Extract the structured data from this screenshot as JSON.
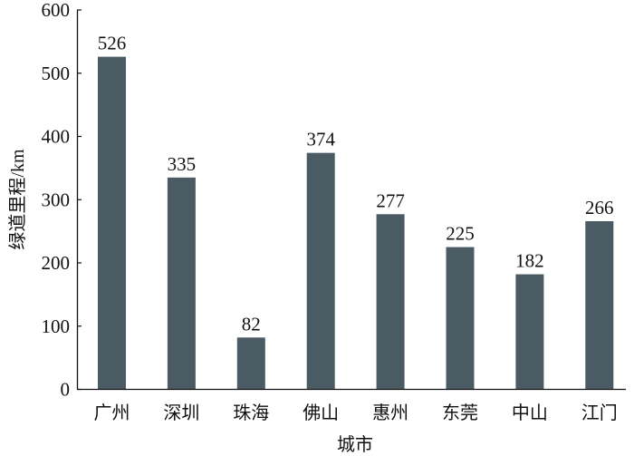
{
  "chart_data": {
    "type": "bar",
    "categories": [
      "广州",
      "深圳",
      "珠海",
      "佛山",
      "惠州",
      "东莞",
      "中山",
      "江门"
    ],
    "values": [
      526,
      335,
      82,
      374,
      277,
      225,
      182,
      266
    ],
    "data_labels": [
      "526",
      "335",
      "82",
      "374",
      "277",
      "225",
      "182",
      "266"
    ],
    "xlabel": "城市",
    "ylabel": "绿道里程/km",
    "ylim": [
      0,
      600
    ],
    "yticks": [
      0,
      100,
      200,
      300,
      400,
      500,
      600
    ],
    "grid": false,
    "bar_color": "#4b5b63"
  }
}
